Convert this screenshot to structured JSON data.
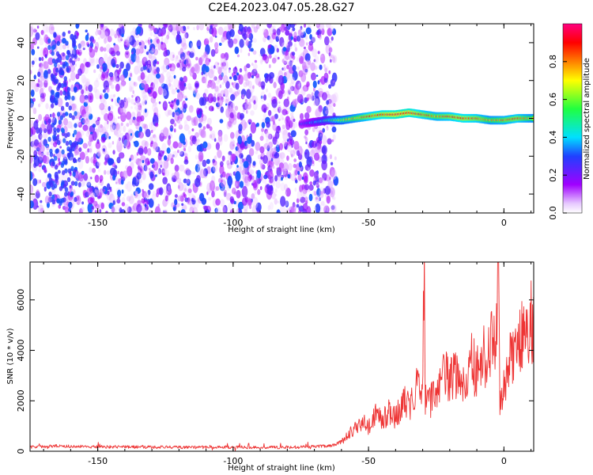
{
  "title": "C2E4.2023.047.05.28.G27",
  "chart_data": [
    {
      "type": "heatmap",
      "xlabel": "Height of straight line (km)",
      "ylabel": "Frequency (Hz)",
      "xlim": [
        -175,
        11
      ],
      "ylim": [
        -50,
        50
      ],
      "xticks": [
        -150,
        -100,
        -50,
        0
      ],
      "yticks": [
        -40,
        -20,
        0,
        20,
        40
      ],
      "colorbar": {
        "label": "Normalized spectral amplitude",
        "range": [
          0,
          1
        ],
        "ticks": [
          "0.0",
          "0.2",
          "0.4",
          "0.6",
          "0.8"
        ],
        "colormap": [
          "#ffffff",
          "#a000ff",
          "#2040ff",
          "#00e0ff",
          "#20ff40",
          "#ffff00",
          "#ff8000",
          "#ff0000",
          "#ff0080"
        ]
      },
      "noise_region_x": [
        -175,
        -62
      ],
      "signal_ridge": {
        "x": [
          -75,
          -70,
          -65,
          -60,
          -55,
          -50,
          -45,
          -40,
          -35,
          -30,
          -25,
          -20,
          -15,
          -10,
          -5,
          0,
          5,
          10
        ],
        "freq": [
          -3,
          -2,
          -1,
          -1,
          0,
          1,
          2,
          2,
          3,
          2,
          1,
          1,
          0,
          0,
          -1,
          -1,
          0,
          0
        ],
        "amplitude": [
          0.2,
          0.3,
          0.4,
          0.6,
          0.7,
          0.8,
          0.85,
          0.9,
          0.9,
          0.8,
          0.75,
          0.8,
          0.85,
          0.8,
          0.7,
          0.75,
          0.8,
          0.7
        ]
      }
    },
    {
      "type": "line",
      "xlabel": "Height of straight line (km)",
      "ylabel": "SNR (10 * v/v)",
      "xlim": [
        -175,
        11
      ],
      "ylim": [
        0,
        7500
      ],
      "xticks": [
        -150,
        -100,
        -50,
        0
      ],
      "yticks": [
        0,
        2000,
        4000,
        6000
      ],
      "color": "#ee3333",
      "series": [
        {
          "x": [
            -175,
            -165,
            -155,
            -145,
            -135,
            -125,
            -115,
            -105,
            -95,
            -85,
            -75,
            -70,
            -65,
            -62,
            -60,
            -58,
            -55,
            -52,
            -50,
            -47,
            -45,
            -42,
            -40,
            -37,
            -35,
            -32,
            -30,
            -29.5,
            -29,
            -28,
            -25,
            -22,
            -20,
            -17,
            -15,
            -12,
            -10,
            -7,
            -5,
            -3,
            -2,
            -1.5,
            -1,
            0,
            2,
            5,
            8,
            11
          ],
          "y": [
            150,
            200,
            170,
            160,
            150,
            150,
            140,
            150,
            145,
            140,
            150,
            180,
            200,
            250,
            350,
            600,
            900,
            1200,
            1000,
            1500,
            1200,
            1600,
            1300,
            2000,
            1800,
            2600,
            2200,
            7500,
            2000,
            1800,
            2500,
            3000,
            2800,
            3200,
            2500,
            3500,
            3200,
            3800,
            4100,
            4300,
            7000,
            2000,
            1700,
            2500,
            3500,
            4500,
            5000,
            5200
          ]
        }
      ]
    }
  ]
}
